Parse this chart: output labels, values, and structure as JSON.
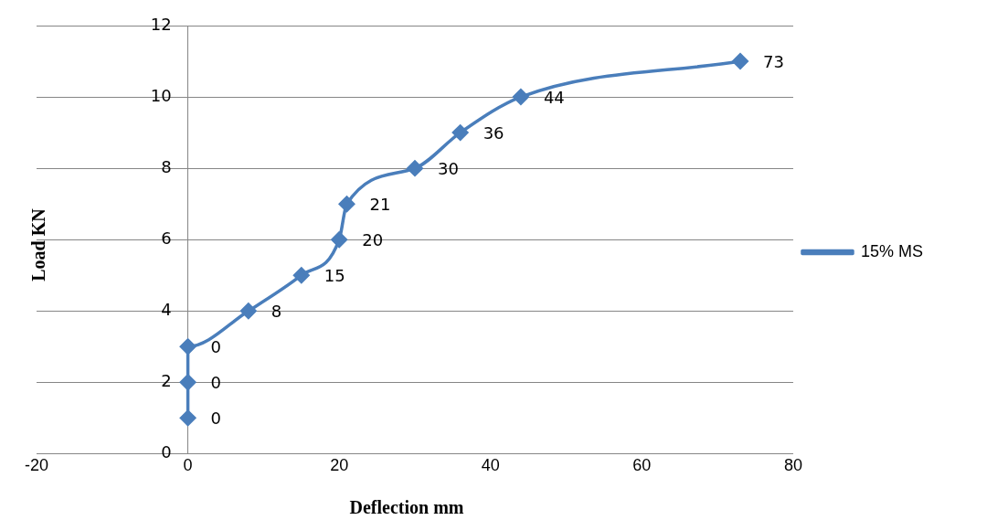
{
  "chart_data": {
    "type": "line",
    "xlabel": "Deflection mm",
    "ylabel": "Load KN",
    "x": [
      0,
      0,
      0,
      8,
      15,
      20,
      21,
      30,
      36,
      44,
      73
    ],
    "series": [
      {
        "name": "15% MS",
        "color": "#4a7ebb",
        "values": [
          1,
          2,
          3,
          4,
          5,
          6,
          7,
          8,
          9,
          10,
          11
        ]
      }
    ],
    "xlim": [
      -20,
      80
    ],
    "xticks": [
      -20,
      0,
      20,
      40,
      60,
      80
    ],
    "ylim": [
      0,
      12
    ],
    "yticks": [
      0,
      2,
      4,
      6,
      8,
      10,
      12
    ],
    "annotations": [
      {
        "text": "0",
        "x": 0,
        "y": 1
      },
      {
        "text": "0",
        "x": 0,
        "y": 2
      },
      {
        "text": "0",
        "x": 0,
        "y": 3
      },
      {
        "text": "8",
        "x": 8,
        "y": 4
      },
      {
        "text": "15",
        "x": 15,
        "y": 5
      },
      {
        "text": "20",
        "x": 20,
        "y": 6
      },
      {
        "text": "21",
        "x": 21,
        "y": 7
      },
      {
        "text": "30",
        "x": 30,
        "y": 8
      },
      {
        "text": "36",
        "x": 36,
        "y": 9
      },
      {
        "text": "44",
        "x": 44,
        "y": 10
      },
      {
        "text": "73",
        "x": 73,
        "y": 11
      }
    ],
    "grid": "y",
    "legend": "right",
    "marker": "diamond"
  }
}
